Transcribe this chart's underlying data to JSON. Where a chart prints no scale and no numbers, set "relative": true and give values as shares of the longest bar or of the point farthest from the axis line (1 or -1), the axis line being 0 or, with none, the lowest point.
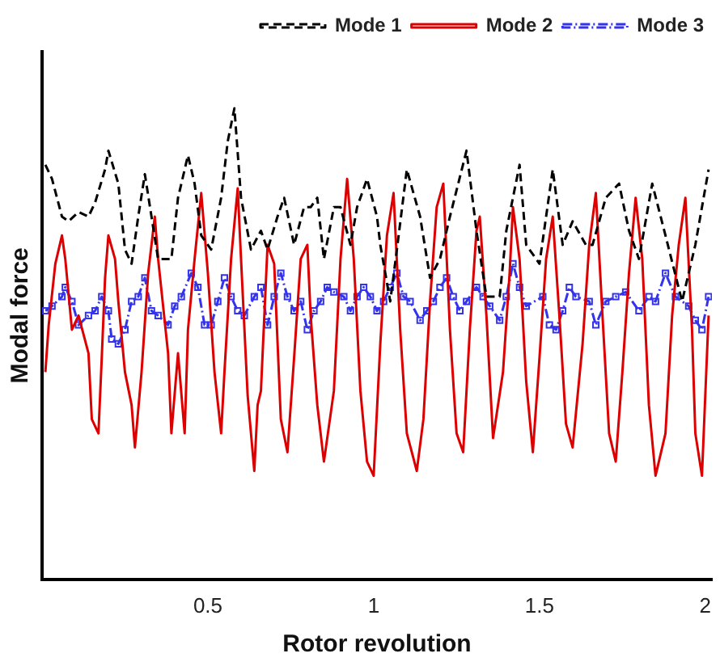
{
  "chart_data": {
    "type": "line",
    "xlabel": "Rotor revolution",
    "ylabel": "Modal force",
    "relative": true,
    "xlim": [
      0,
      2.02
    ],
    "xticks": [
      0.5,
      1,
      1.5,
      2
    ],
    "grid": false,
    "legend": "top right",
    "series": [
      {
        "name": "Mode 1",
        "color": "#000000",
        "line_style": "dashed",
        "marker": "none",
        "x": [
          0.01,
          0.03,
          0.06,
          0.08,
          0.11,
          0.14,
          0.16,
          0.19,
          0.2,
          0.23,
          0.25,
          0.27,
          0.29,
          0.31,
          0.33,
          0.35,
          0.39,
          0.41,
          0.44,
          0.46,
          0.48,
          0.51,
          0.54,
          0.56,
          0.58,
          0.6,
          0.63,
          0.66,
          0.68,
          0.71,
          0.73,
          0.76,
          0.79,
          0.81,
          0.83,
          0.85,
          0.88,
          0.9,
          0.93,
          0.95,
          0.98,
          1.01,
          1.02,
          1.05,
          1.07,
          1.1,
          1.14,
          1.17,
          1.2,
          1.23,
          1.28,
          1.31,
          1.34,
          1.38,
          1.4,
          1.44,
          1.46,
          1.5,
          1.54,
          1.57,
          1.6,
          1.64,
          1.66,
          1.7,
          1.74,
          1.77,
          1.8,
          1.84,
          1.88,
          1.93,
          1.97,
          2.01
        ],
        "values": [
          0.88,
          0.85,
          0.77,
          0.76,
          0.78,
          0.77,
          0.8,
          0.87,
          0.91,
          0.84,
          0.7,
          0.67,
          0.77,
          0.86,
          0.77,
          0.68,
          0.68,
          0.81,
          0.9,
          0.84,
          0.73,
          0.7,
          0.81,
          0.93,
          1.0,
          0.81,
          0.7,
          0.74,
          0.7,
          0.77,
          0.81,
          0.71,
          0.79,
          0.79,
          0.81,
          0.68,
          0.79,
          0.79,
          0.71,
          0.79,
          0.85,
          0.77,
          0.71,
          0.59,
          0.7,
          0.87,
          0.77,
          0.64,
          0.68,
          0.77,
          0.91,
          0.74,
          0.6,
          0.6,
          0.74,
          0.88,
          0.71,
          0.67,
          0.87,
          0.71,
          0.76,
          0.71,
          0.71,
          0.81,
          0.84,
          0.74,
          0.68,
          0.84,
          0.73,
          0.59,
          0.71,
          0.87
        ]
      },
      {
        "name": "Mode 2",
        "color": "#dd0000",
        "line_style": "solid",
        "marker": "none",
        "x": [
          0.01,
          0.02,
          0.04,
          0.06,
          0.07,
          0.09,
          0.11,
          0.14,
          0.15,
          0.17,
          0.18,
          0.19,
          0.2,
          0.22,
          0.23,
          0.25,
          0.27,
          0.28,
          0.3,
          0.32,
          0.34,
          0.35,
          0.38,
          0.39,
          0.41,
          0.43,
          0.44,
          0.46,
          0.48,
          0.5,
          0.52,
          0.54,
          0.55,
          0.57,
          0.59,
          0.6,
          0.62,
          0.64,
          0.65,
          0.66,
          0.68,
          0.7,
          0.72,
          0.74,
          0.76,
          0.78,
          0.8,
          0.81,
          0.83,
          0.85,
          0.88,
          0.9,
          0.92,
          0.94,
          0.96,
          0.98,
          1.0,
          1.02,
          1.04,
          1.06,
          1.08,
          1.1,
          1.13,
          1.15,
          1.17,
          1.19,
          1.21,
          1.23,
          1.25,
          1.27,
          1.29,
          1.31,
          1.32,
          1.34,
          1.36,
          1.39,
          1.41,
          1.42,
          1.44,
          1.46,
          1.48,
          1.5,
          1.52,
          1.54,
          1.56,
          1.58,
          1.6,
          1.63,
          1.65,
          1.67,
          1.69,
          1.71,
          1.73,
          1.75,
          1.77,
          1.79,
          1.81,
          1.83,
          1.85,
          1.88,
          1.9,
          1.92,
          1.94,
          1.96,
          1.97,
          1.99,
          2.01
        ],
        "values": [
          0.44,
          0.54,
          0.67,
          0.73,
          0.68,
          0.53,
          0.56,
          0.48,
          0.34,
          0.31,
          0.47,
          0.64,
          0.73,
          0.68,
          0.59,
          0.44,
          0.37,
          0.28,
          0.44,
          0.65,
          0.77,
          0.68,
          0.48,
          0.31,
          0.48,
          0.31,
          0.53,
          0.68,
          0.82,
          0.65,
          0.44,
          0.31,
          0.44,
          0.68,
          0.83,
          0.68,
          0.39,
          0.23,
          0.37,
          0.4,
          0.71,
          0.67,
          0.34,
          0.27,
          0.47,
          0.68,
          0.71,
          0.56,
          0.37,
          0.25,
          0.4,
          0.68,
          0.85,
          0.68,
          0.4,
          0.25,
          0.22,
          0.5,
          0.73,
          0.82,
          0.53,
          0.31,
          0.23,
          0.34,
          0.59,
          0.79,
          0.84,
          0.53,
          0.31,
          0.27,
          0.53,
          0.74,
          0.77,
          0.56,
          0.3,
          0.44,
          0.65,
          0.79,
          0.68,
          0.42,
          0.27,
          0.47,
          0.68,
          0.77,
          0.56,
          0.33,
          0.28,
          0.5,
          0.71,
          0.82,
          0.56,
          0.31,
          0.25,
          0.44,
          0.65,
          0.81,
          0.68,
          0.37,
          0.22,
          0.31,
          0.56,
          0.71,
          0.81,
          0.53,
          0.31,
          0.22,
          0.56
        ]
      },
      {
        "name": "Mode 3",
        "color": "#3333ee",
        "line_style": "dotted",
        "marker": "square",
        "x": [
          0.01,
          0.03,
          0.06,
          0.07,
          0.09,
          0.11,
          0.14,
          0.16,
          0.18,
          0.2,
          0.21,
          0.23,
          0.25,
          0.27,
          0.29,
          0.31,
          0.33,
          0.35,
          0.38,
          0.4,
          0.42,
          0.45,
          0.47,
          0.49,
          0.51,
          0.53,
          0.55,
          0.57,
          0.59,
          0.61,
          0.64,
          0.66,
          0.68,
          0.7,
          0.72,
          0.74,
          0.76,
          0.78,
          0.8,
          0.82,
          0.84,
          0.86,
          0.88,
          0.91,
          0.93,
          0.95,
          0.97,
          0.99,
          1.01,
          1.03,
          1.05,
          1.07,
          1.09,
          1.11,
          1.14,
          1.16,
          1.18,
          1.2,
          1.22,
          1.24,
          1.26,
          1.28,
          1.31,
          1.33,
          1.35,
          1.38,
          1.4,
          1.42,
          1.44,
          1.46,
          1.51,
          1.53,
          1.55,
          1.57,
          1.59,
          1.61,
          1.65,
          1.67,
          1.7,
          1.73,
          1.76,
          1.8,
          1.83,
          1.85,
          1.88,
          1.91,
          1.95,
          1.97,
          1.99,
          2.01
        ],
        "values": [
          0.57,
          0.58,
          0.6,
          0.62,
          0.59,
          0.54,
          0.56,
          0.57,
          0.6,
          0.57,
          0.51,
          0.5,
          0.53,
          0.59,
          0.6,
          0.64,
          0.57,
          0.56,
          0.54,
          0.58,
          0.6,
          0.65,
          0.62,
          0.54,
          0.54,
          0.59,
          0.64,
          0.6,
          0.57,
          0.56,
          0.6,
          0.62,
          0.54,
          0.6,
          0.65,
          0.6,
          0.57,
          0.59,
          0.53,
          0.57,
          0.59,
          0.62,
          0.61,
          0.6,
          0.57,
          0.6,
          0.62,
          0.6,
          0.57,
          0.59,
          0.62,
          0.65,
          0.6,
          0.59,
          0.55,
          0.57,
          0.59,
          0.62,
          0.64,
          0.6,
          0.57,
          0.59,
          0.62,
          0.6,
          0.58,
          0.55,
          0.6,
          0.67,
          0.62,
          0.58,
          0.6,
          0.54,
          0.53,
          0.57,
          0.62,
          0.6,
          0.59,
          0.54,
          0.59,
          0.6,
          0.61,
          0.57,
          0.6,
          0.59,
          0.65,
          0.6,
          0.58,
          0.55,
          0.53,
          0.6
        ]
      }
    ]
  }
}
